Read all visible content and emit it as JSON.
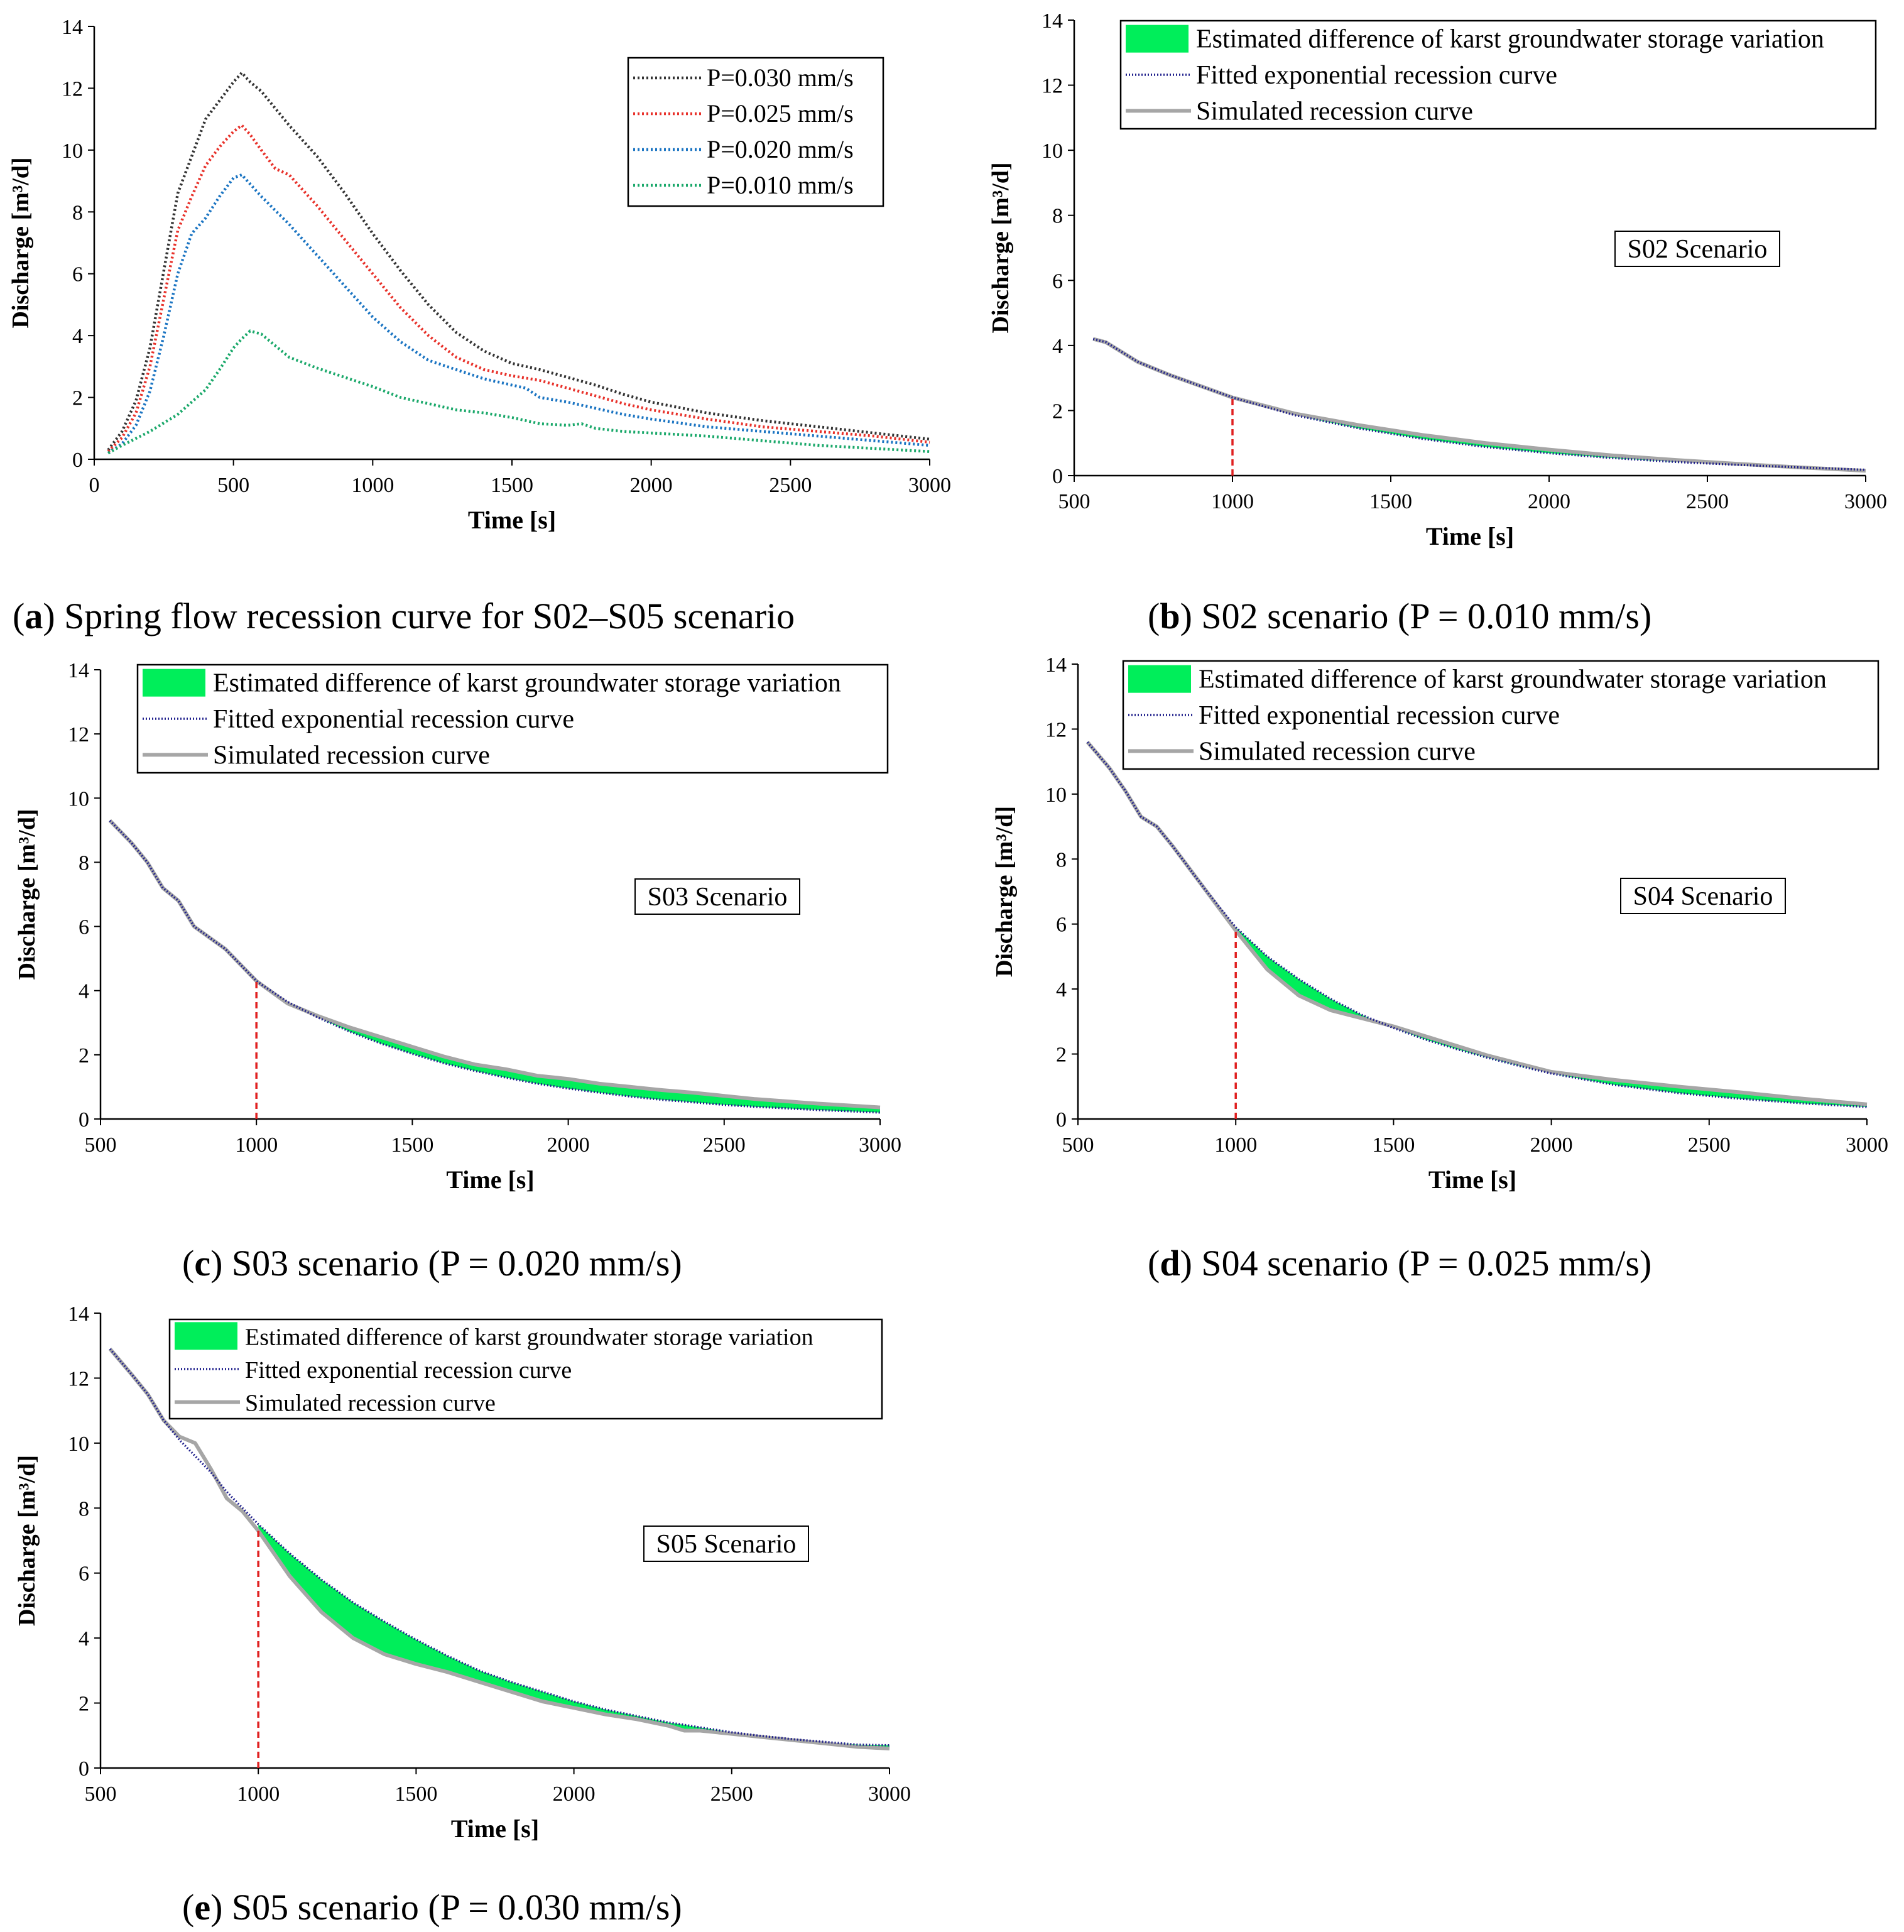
{
  "colors": {
    "p030": "#333333",
    "p025": "#e8312a",
    "p020": "#1a74c2",
    "p010": "#1aa86a",
    "fill": "#00ee5a",
    "fitted": "#1f1f8c",
    "simulated": "#a6a6a6",
    "marker": "#e02020"
  },
  "chart_data": [
    {
      "id": "a",
      "type": "line",
      "caption": {
        "letter": "a",
        "text": " Spring flow recession curve for S02–S05 scenario"
      },
      "xlabel": "Time [s]",
      "ylabel": "Discharge [m³/d]",
      "xlim": [
        0,
        3000
      ],
      "ylim": [
        0,
        14
      ],
      "xticks": [
        "0",
        "500",
        "1000",
        "1500",
        "2000",
        "2500",
        "3000"
      ],
      "yticks": [
        "0",
        "2",
        "4",
        "6",
        "8",
        "10",
        "12",
        "14"
      ],
      "legend": {
        "position": "top-right"
      },
      "series": [
        {
          "name": "P=0.030 mm/s",
          "color_key": "p030",
          "x": [
            50,
            100,
            150,
            200,
            250,
            300,
            350,
            400,
            450,
            500,
            530,
            560,
            600,
            700,
            800,
            900,
            1000,
            1100,
            1200,
            1300,
            1400,
            1500,
            1600,
            1700,
            1800,
            1900,
            2000,
            2200,
            2400,
            2600,
            2800,
            3000
          ],
          "y": [
            0.3,
            0.9,
            1.9,
            3.6,
            6.1,
            8.6,
            9.8,
            11.0,
            11.6,
            12.2,
            12.5,
            12.2,
            11.9,
            10.8,
            9.8,
            8.6,
            7.3,
            6.1,
            5.0,
            4.1,
            3.5,
            3.1,
            2.9,
            2.65,
            2.4,
            2.1,
            1.85,
            1.5,
            1.25,
            1.05,
            0.85,
            0.65
          ]
        },
        {
          "name": "P=0.025 mm/s",
          "color_key": "p025",
          "x": [
            50,
            100,
            150,
            200,
            250,
            300,
            350,
            400,
            450,
            500,
            530,
            560,
            600,
            650,
            700,
            800,
            900,
            1000,
            1100,
            1200,
            1300,
            1400,
            1500,
            1600,
            1700,
            1800,
            1900,
            2000,
            2200,
            2400,
            2600,
            2800,
            3000
          ],
          "y": [
            0.25,
            0.7,
            1.5,
            3.0,
            5.2,
            7.4,
            8.5,
            9.5,
            10.1,
            10.6,
            10.8,
            10.5,
            10.0,
            9.4,
            9.2,
            8.2,
            7.1,
            6.0,
            4.9,
            4.0,
            3.3,
            2.9,
            2.7,
            2.55,
            2.3,
            2.05,
            1.8,
            1.6,
            1.3,
            1.05,
            0.9,
            0.75,
            0.55
          ]
        },
        {
          "name": "P=0.020 mm/s",
          "color_key": "p020",
          "x": [
            50,
            100,
            150,
            200,
            250,
            300,
            350,
            400,
            450,
            500,
            530,
            560,
            600,
            700,
            800,
            900,
            1000,
            1100,
            1200,
            1300,
            1400,
            1500,
            1550,
            1600,
            1700,
            1800,
            1900,
            2000,
            2200,
            2400,
            2600,
            2800,
            3000
          ],
          "y": [
            0.2,
            0.5,
            1.1,
            2.2,
            4.0,
            6.0,
            7.3,
            7.8,
            8.5,
            9.1,
            9.2,
            8.9,
            8.5,
            7.6,
            6.6,
            5.6,
            4.6,
            3.8,
            3.2,
            2.9,
            2.6,
            2.4,
            2.3,
            2.0,
            1.85,
            1.65,
            1.45,
            1.3,
            1.05,
            0.9,
            0.75,
            0.6,
            0.45
          ]
        },
        {
          "name": "P=0.010 mm/s",
          "color_key": "p010",
          "x": [
            50,
            100,
            200,
            300,
            400,
            450,
            500,
            530,
            560,
            600,
            700,
            800,
            900,
            1000,
            1100,
            1200,
            1300,
            1400,
            1500,
            1550,
            1600,
            1700,
            1750,
            1800,
            1900,
            2000,
            2100,
            2200,
            2400,
            2600,
            2800,
            3000
          ],
          "y": [
            0.2,
            0.45,
            0.9,
            1.45,
            2.25,
            2.9,
            3.6,
            3.9,
            4.15,
            4.05,
            3.3,
            2.95,
            2.65,
            2.35,
            2.0,
            1.8,
            1.6,
            1.5,
            1.35,
            1.25,
            1.15,
            1.1,
            1.15,
            1.0,
            0.9,
            0.85,
            0.8,
            0.75,
            0.6,
            0.45,
            0.35,
            0.25
          ]
        }
      ]
    },
    {
      "id": "b",
      "type": "area",
      "caption": {
        "letter": "b",
        "text": " S02 scenario (P = 0.010 mm/s)"
      },
      "scenario_label": "S02 Scenario",
      "xlabel": "Time [s]",
      "ylabel": "Discharge [m³/d]",
      "xlim": [
        500,
        3000
      ],
      "ylim": [
        0,
        14
      ],
      "xticks": [
        "500",
        "1000",
        "1500",
        "2000",
        "2500",
        "3000"
      ],
      "yticks": [
        "0",
        "2",
        "4",
        "6",
        "8",
        "10",
        "12",
        "14"
      ],
      "marker_x": 1000,
      "legend": [
        "Estimated difference of karst groundwater storage variation",
        "Fitted exponential recession curve",
        "Simulated recession curve"
      ],
      "series": [
        {
          "name": "Simulated recession curve",
          "x": [
            560,
            600,
            650,
            700,
            800,
            900,
            1000,
            1200,
            1400,
            1600,
            1800,
            2000,
            2200,
            2400,
            2600,
            2800,
            3000
          ],
          "y": [
            4.2,
            4.1,
            3.8,
            3.5,
            3.1,
            2.75,
            2.4,
            1.9,
            1.55,
            1.25,
            1.0,
            0.8,
            0.62,
            0.48,
            0.36,
            0.25,
            0.15
          ]
        },
        {
          "name": "Fitted exponential recession curve",
          "x": [
            560,
            600,
            650,
            700,
            800,
            900,
            1000,
            1200,
            1400,
            1600,
            1800,
            2000,
            2200,
            2400,
            2600,
            2800,
            3000
          ],
          "y": [
            4.2,
            4.1,
            3.8,
            3.5,
            3.1,
            2.75,
            2.4,
            1.85,
            1.45,
            1.13,
            0.88,
            0.69,
            0.54,
            0.42,
            0.33,
            0.25,
            0.18
          ]
        }
      ]
    },
    {
      "id": "c",
      "type": "area",
      "caption": {
        "letter": "c",
        "text": " S03 scenario (P = 0.020 mm/s)"
      },
      "scenario_label": "S03 Scenario",
      "xlabel": "Time [s]",
      "ylabel": "Discharge [m³/d]",
      "xlim": [
        500,
        3000
      ],
      "ylim": [
        0,
        14
      ],
      "xticks": [
        "500",
        "1000",
        "1500",
        "2000",
        "2500",
        "3000"
      ],
      "yticks": [
        "0",
        "2",
        "4",
        "6",
        "8",
        "10",
        "12",
        "14"
      ],
      "marker_x": 1000,
      "legend": [
        "Estimated difference of karst groundwater storage variation",
        "Fitted exponential recession curve",
        "Simulated recession curve"
      ],
      "series": [
        {
          "name": "Simulated recession curve",
          "x": [
            530,
            600,
            650,
            700,
            750,
            800,
            900,
            1000,
            1100,
            1200,
            1300,
            1400,
            1500,
            1600,
            1700,
            1800,
            1900,
            2000,
            2100,
            2200,
            2300,
            2400,
            2500,
            2600,
            2700,
            2800,
            2900,
            3000
          ],
          "y": [
            9.3,
            8.6,
            8.0,
            7.2,
            6.8,
            6.0,
            5.3,
            4.3,
            3.6,
            3.2,
            2.85,
            2.55,
            2.25,
            1.95,
            1.7,
            1.55,
            1.35,
            1.25,
            1.1,
            1.0,
            0.9,
            0.82,
            0.72,
            0.62,
            0.55,
            0.48,
            0.42,
            0.36
          ]
        },
        {
          "name": "Fitted exponential recession curve",
          "x": [
            530,
            600,
            650,
            700,
            750,
            800,
            900,
            1000,
            1100,
            1200,
            1300,
            1400,
            1500,
            1600,
            1700,
            1800,
            1900,
            2000,
            2100,
            2200,
            2300,
            2400,
            2500,
            2600,
            2700,
            2800,
            2900,
            3000
          ],
          "y": [
            9.3,
            8.6,
            8.0,
            7.2,
            6.8,
            6.0,
            5.3,
            4.3,
            3.65,
            3.15,
            2.72,
            2.35,
            2.03,
            1.74,
            1.5,
            1.29,
            1.1,
            0.95,
            0.82,
            0.7,
            0.6,
            0.52,
            0.44,
            0.38,
            0.33,
            0.28,
            0.24,
            0.2
          ]
        }
      ]
    },
    {
      "id": "d",
      "type": "area",
      "caption": {
        "letter": "d",
        "text": " S04 scenario (P = 0.025 mm/s)"
      },
      "scenario_label": "S04 Scenario",
      "xlabel": "Time [s]",
      "ylabel": "Discharge [m³/d]",
      "xlim": [
        500,
        3000
      ],
      "ylim": [
        0,
        14
      ],
      "xticks": [
        "500",
        "1000",
        "1500",
        "2000",
        "2500",
        "3000"
      ],
      "yticks": [
        "0",
        "2",
        "4",
        "6",
        "8",
        "10",
        "12",
        "14"
      ],
      "marker_x": 1000,
      "legend": [
        "Estimated difference of karst groundwater storage variation",
        "Fitted exponential recession curve",
        "Simulated recession curve"
      ],
      "series": [
        {
          "name": "Simulated recession curve",
          "x": [
            530,
            600,
            650,
            700,
            750,
            800,
            900,
            1000,
            1100,
            1200,
            1300,
            1400,
            1500,
            1600,
            1700,
            1800,
            1900,
            2000,
            2200,
            2400,
            2600,
            2800,
            3000
          ],
          "y": [
            11.6,
            10.8,
            10.1,
            9.3,
            9.0,
            8.4,
            7.1,
            5.8,
            4.6,
            3.8,
            3.35,
            3.1,
            2.85,
            2.55,
            2.25,
            1.95,
            1.7,
            1.45,
            1.2,
            1.0,
            0.82,
            0.62,
            0.45
          ]
        },
        {
          "name": "Fitted exponential recession curve",
          "x": [
            530,
            600,
            650,
            700,
            750,
            800,
            900,
            1000,
            1100,
            1200,
            1300,
            1400,
            1500,
            1600,
            1700,
            1800,
            1900,
            2000,
            2200,
            2400,
            2600,
            2800,
            3000
          ],
          "y": [
            11.6,
            10.8,
            10.1,
            9.3,
            9.0,
            8.4,
            7.1,
            5.9,
            5.0,
            4.3,
            3.7,
            3.2,
            2.8,
            2.45,
            2.15,
            1.88,
            1.63,
            1.4,
            1.05,
            0.8,
            0.62,
            0.48,
            0.37
          ]
        }
      ]
    },
    {
      "id": "e",
      "type": "area",
      "caption": {
        "letter": "e",
        "text": " S05 scenario (P = 0.030 mm/s)"
      },
      "scenario_label": "S05 Scenario",
      "xlabel": "Time [s]",
      "ylabel": "Discharge [m³/d]",
      "xlim": [
        500,
        3000
      ],
      "ylim": [
        0,
        14
      ],
      "xticks": [
        "500",
        "1000",
        "1500",
        "2000",
        "2500",
        "3000"
      ],
      "yticks": [
        "0",
        "2",
        "4",
        "6",
        "8",
        "10",
        "12",
        "14"
      ],
      "marker_x": 1000,
      "legend": [
        "Estimated difference of karst groundwater storage variation",
        "Fitted exponential recession curve",
        "Simulated recession curve"
      ],
      "series": [
        {
          "name": "Simulated recession curve",
          "x": [
            530,
            600,
            650,
            700,
            750,
            800,
            850,
            900,
            950,
            1000,
            1100,
            1200,
            1300,
            1400,
            1500,
            1600,
            1700,
            1800,
            1900,
            2000,
            2100,
            2200,
            2300,
            2350,
            2400,
            2500,
            2600,
            2700,
            2800,
            2900,
            3000
          ],
          "y": [
            12.9,
            12.1,
            11.5,
            10.7,
            10.2,
            10.0,
            9.2,
            8.3,
            7.9,
            7.3,
            5.9,
            4.8,
            4.0,
            3.5,
            3.2,
            2.95,
            2.65,
            2.35,
            2.05,
            1.85,
            1.65,
            1.5,
            1.3,
            1.15,
            1.15,
            1.05,
            0.95,
            0.85,
            0.75,
            0.65,
            0.6
          ]
        },
        {
          "name": "Fitted exponential recession curve",
          "x": [
            530,
            600,
            650,
            700,
            750,
            800,
            850,
            900,
            950,
            1000,
            1100,
            1200,
            1300,
            1400,
            1500,
            1600,
            1700,
            1800,
            1900,
            2000,
            2100,
            2200,
            2300,
            2350,
            2400,
            2500,
            2600,
            2700,
            2800,
            2900,
            3000
          ],
          "y": [
            12.9,
            12.1,
            11.5,
            10.7,
            10.1,
            9.6,
            9.1,
            8.5,
            8.0,
            7.5,
            6.6,
            5.8,
            5.1,
            4.5,
            3.95,
            3.45,
            3.0,
            2.65,
            2.35,
            2.05,
            1.8,
            1.6,
            1.4,
            1.33,
            1.25,
            1.1,
            0.98,
            0.88,
            0.8,
            0.72,
            0.7
          ]
        }
      ]
    }
  ]
}
